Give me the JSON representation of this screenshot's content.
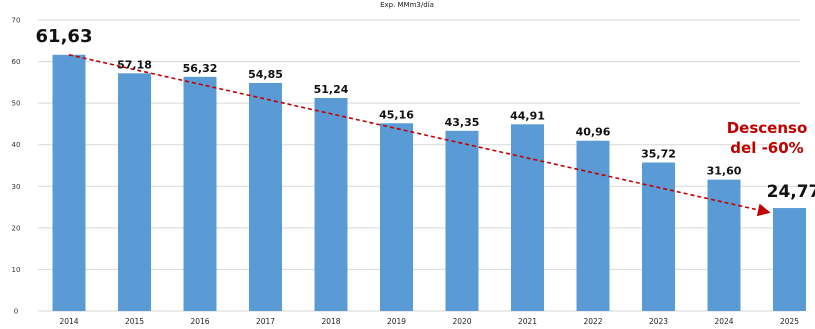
{
  "chart_data": {
    "type": "bar",
    "title": "Exp. MMm3/día",
    "categories": [
      "2014",
      "2015",
      "2016",
      "2017",
      "2018",
      "2019",
      "2020",
      "2021",
      "2022",
      "2023",
      "2024",
      "2025"
    ],
    "values": [
      61.63,
      57.18,
      56.32,
      54.85,
      51.24,
      45.16,
      43.35,
      44.91,
      40.96,
      35.72,
      31.6,
      24.77
    ],
    "data_labels": [
      "61,63",
      "57,18",
      "56,32",
      "54,85",
      "51,24",
      "45,16",
      "43,35",
      "44,91",
      "40,96",
      "35,72",
      "31,60",
      "24,77"
    ],
    "yticks": [
      0,
      10,
      20,
      30,
      40,
      50,
      60,
      70
    ],
    "ylim": [
      0,
      70
    ],
    "xlabel": "",
    "ylabel": "",
    "grid": true,
    "legend": "none",
    "bar_color": "#5b9bd5",
    "trend_line": {
      "from_category": "2014",
      "to_category": "2025",
      "from_value": 61.63,
      "to_value": 24.77,
      "style": "dashed",
      "color": "#c00000"
    },
    "annotation": {
      "lines": [
        "Descenso",
        "del -60%"
      ],
      "color": "#c00000"
    }
  }
}
